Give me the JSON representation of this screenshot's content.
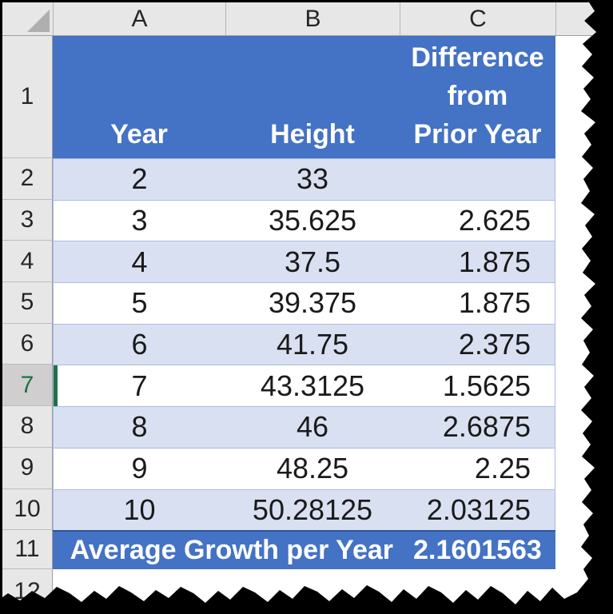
{
  "colors": {
    "header_blue": "#4472C4",
    "band_blue": "#D9E0F2",
    "selection_green": "#1E7145",
    "total_border_blue": "#2F5597"
  },
  "spreadsheet": {
    "column_headers": [
      "A",
      "B",
      "C"
    ],
    "row_headers": [
      "1",
      "2",
      "3",
      "4",
      "5",
      "6",
      "7",
      "8",
      "9",
      "10",
      "11",
      "12"
    ],
    "selected_row": "7"
  },
  "table": {
    "header": {
      "year": "Year",
      "height": "Height",
      "difference": "Difference\nfrom\nPrior Year"
    },
    "rows": [
      {
        "year": "2",
        "height": "33",
        "difference": ""
      },
      {
        "year": "3",
        "height": "35.625",
        "difference": "2.625"
      },
      {
        "year": "4",
        "height": "37.5",
        "difference": "1.875"
      },
      {
        "year": "5",
        "height": "39.375",
        "difference": "1.875"
      },
      {
        "year": "6",
        "height": "41.75",
        "difference": "2.375"
      },
      {
        "year": "7",
        "height": "43.3125",
        "difference": "1.5625"
      },
      {
        "year": "8",
        "height": "46",
        "difference": "2.6875"
      },
      {
        "year": "9",
        "height": "48.25",
        "difference": "2.25"
      },
      {
        "year": "10",
        "height": "50.28125",
        "difference": "2.03125"
      }
    ],
    "total_row": {
      "label": "Average Growth per Year",
      "value": "2.1601563"
    }
  }
}
